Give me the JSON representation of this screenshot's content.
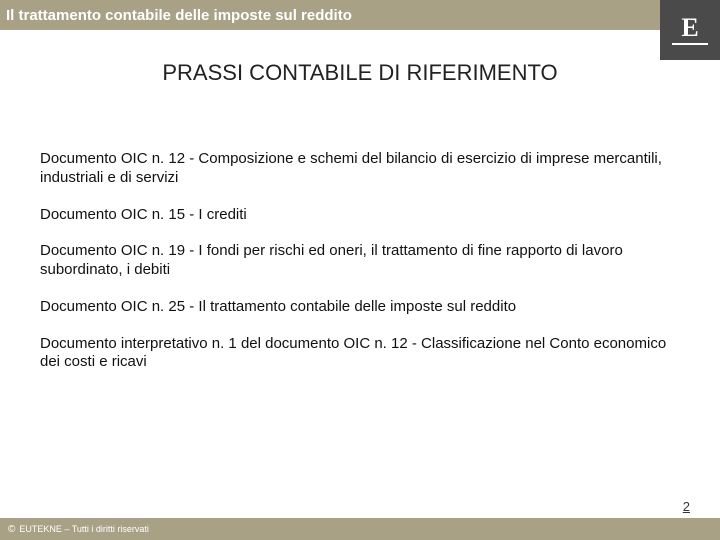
{
  "header": {
    "title": "Il trattamento contabile delle imposte sul reddito",
    "bar_color": "#a8a185",
    "text_color": "#ffffff"
  },
  "logo": {
    "letter": "E",
    "bg_color": "#4a4a4a",
    "fg_color": "#ffffff"
  },
  "main_title": "PRASSI CONTABILE DI RIFERIMENTO",
  "paragraphs": [
    "Documento OIC n. 12 - Composizione e schemi del bilancio di esercizio di imprese mercantili, industriali e di servizi",
    "Documento OIC n. 15 - I crediti",
    "Documento OIC n. 19 - I fondi per rischi ed oneri, il trattamento di fine rapporto di lavoro subordinato, i debiti",
    "Documento OIC n. 25 - Il trattamento contabile delle imposte sul reddito",
    "Documento interpretativo n. 1 del documento OIC n. 12 - Classificazione nel Conto economico dei costi e ricavi"
  ],
  "footer": {
    "copyright_symbol": "©",
    "text": "EUTEKNE – Tutti i diritti riservati",
    "bar_color": "#a8a185"
  },
  "page_number": "2",
  "typography": {
    "header_fontsize": 15,
    "title_fontsize": 22,
    "body_fontsize": 15,
    "footer_fontsize": 9,
    "pagenum_fontsize": 13
  },
  "colors": {
    "background": "#ffffff",
    "text": "#111111",
    "accent": "#a8a185",
    "logo_bg": "#4a4a4a"
  }
}
